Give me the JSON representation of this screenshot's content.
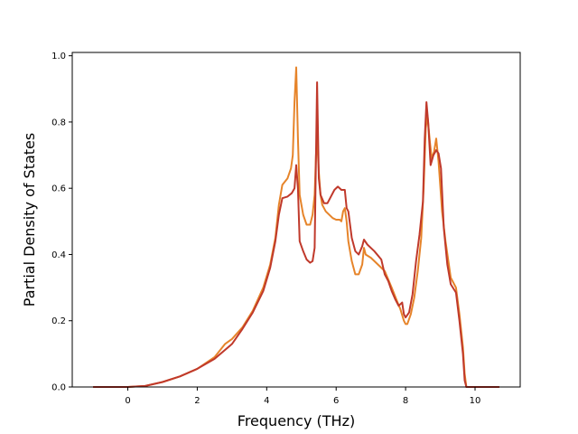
{
  "chart_data": {
    "type": "line",
    "title": "",
    "xlabel": "Frequency (THz)",
    "ylabel": "Partial Density of States",
    "xlim": [
      -1.6,
      11.3
    ],
    "ylim": [
      0.0,
      1.01
    ],
    "xticks": [
      0,
      2,
      4,
      6,
      8,
      10
    ],
    "yticks": [
      0.0,
      0.2,
      0.4,
      0.6,
      0.8,
      1.0
    ],
    "xtick_labels": [
      "0",
      "2",
      "4",
      "6",
      "8",
      "10"
    ],
    "ytick_labels": [
      "0.0",
      "0.2",
      "0.4",
      "0.6",
      "0.8",
      "1.0"
    ],
    "grid": false,
    "legend": "none",
    "series": [
      {
        "color": "#e6842a",
        "points": [
          [
            -1.0,
            0.0
          ],
          [
            0.0,
            0.0
          ],
          [
            0.5,
            0.003
          ],
          [
            1.0,
            0.015
          ],
          [
            1.5,
            0.032
          ],
          [
            2.0,
            0.055
          ],
          [
            2.5,
            0.09
          ],
          [
            2.8,
            0.13
          ],
          [
            3.0,
            0.145
          ],
          [
            3.3,
            0.18
          ],
          [
            3.6,
            0.23
          ],
          [
            3.9,
            0.3
          ],
          [
            4.1,
            0.37
          ],
          [
            4.25,
            0.45
          ],
          [
            4.35,
            0.55
          ],
          [
            4.45,
            0.61
          ],
          [
            4.6,
            0.63
          ],
          [
            4.7,
            0.66
          ],
          [
            4.75,
            0.7
          ],
          [
            4.8,
            0.86
          ],
          [
            4.85,
            0.965
          ],
          [
            4.9,
            0.75
          ],
          [
            4.95,
            0.58
          ],
          [
            5.05,
            0.52
          ],
          [
            5.15,
            0.49
          ],
          [
            5.25,
            0.49
          ],
          [
            5.32,
            0.52
          ],
          [
            5.38,
            0.58
          ],
          [
            5.42,
            0.7
          ],
          [
            5.45,
            0.75
          ],
          [
            5.5,
            0.65
          ],
          [
            5.55,
            0.58
          ],
          [
            5.6,
            0.55
          ],
          [
            5.7,
            0.53
          ],
          [
            5.9,
            0.51
          ],
          [
            6.0,
            0.505
          ],
          [
            6.1,
            0.505
          ],
          [
            6.15,
            0.5
          ],
          [
            6.2,
            0.53
          ],
          [
            6.25,
            0.54
          ],
          [
            6.3,
            0.5
          ],
          [
            6.35,
            0.44
          ],
          [
            6.45,
            0.38
          ],
          [
            6.55,
            0.34
          ],
          [
            6.65,
            0.34
          ],
          [
            6.75,
            0.37
          ],
          [
            6.8,
            0.42
          ],
          [
            6.85,
            0.4
          ],
          [
            7.0,
            0.39
          ],
          [
            7.2,
            0.37
          ],
          [
            7.4,
            0.35
          ],
          [
            7.6,
            0.3
          ],
          [
            7.75,
            0.26
          ],
          [
            7.85,
            0.235
          ],
          [
            7.95,
            0.2
          ],
          [
            8.0,
            0.19
          ],
          [
            8.05,
            0.19
          ],
          [
            8.15,
            0.22
          ],
          [
            8.25,
            0.27
          ],
          [
            8.35,
            0.35
          ],
          [
            8.45,
            0.45
          ],
          [
            8.52,
            0.6
          ],
          [
            8.58,
            0.78
          ],
          [
            8.63,
            0.82
          ],
          [
            8.7,
            0.74
          ],
          [
            8.75,
            0.69
          ],
          [
            8.82,
            0.71
          ],
          [
            8.88,
            0.75
          ],
          [
            8.95,
            0.68
          ],
          [
            9.05,
            0.53
          ],
          [
            9.15,
            0.44
          ],
          [
            9.3,
            0.33
          ],
          [
            9.45,
            0.3
          ],
          [
            9.55,
            0.22
          ],
          [
            9.65,
            0.12
          ],
          [
            9.7,
            0.04
          ],
          [
            9.75,
            0.0
          ],
          [
            10.7,
            0.0
          ]
        ]
      },
      {
        "color": "#c0392b",
        "points": [
          [
            -1.0,
            0.0
          ],
          [
            0.0,
            0.0
          ],
          [
            0.5,
            0.003
          ],
          [
            1.0,
            0.015
          ],
          [
            1.5,
            0.032
          ],
          [
            2.0,
            0.055
          ],
          [
            2.5,
            0.085
          ],
          [
            3.0,
            0.13
          ],
          [
            3.3,
            0.175
          ],
          [
            3.6,
            0.225
          ],
          [
            3.9,
            0.29
          ],
          [
            4.1,
            0.36
          ],
          [
            4.25,
            0.44
          ],
          [
            4.35,
            0.52
          ],
          [
            4.45,
            0.57
          ],
          [
            4.6,
            0.575
          ],
          [
            4.72,
            0.585
          ],
          [
            4.8,
            0.6
          ],
          [
            4.85,
            0.67
          ],
          [
            4.9,
            0.6
          ],
          [
            4.95,
            0.44
          ],
          [
            5.05,
            0.41
          ],
          [
            5.15,
            0.385
          ],
          [
            5.25,
            0.375
          ],
          [
            5.32,
            0.38
          ],
          [
            5.38,
            0.42
          ],
          [
            5.42,
            0.7
          ],
          [
            5.45,
            0.92
          ],
          [
            5.5,
            0.63
          ],
          [
            5.55,
            0.58
          ],
          [
            5.65,
            0.555
          ],
          [
            5.75,
            0.555
          ],
          [
            5.85,
            0.575
          ],
          [
            5.95,
            0.595
          ],
          [
            6.05,
            0.605
          ],
          [
            6.15,
            0.595
          ],
          [
            6.25,
            0.595
          ],
          [
            6.3,
            0.54
          ],
          [
            6.35,
            0.53
          ],
          [
            6.45,
            0.45
          ],
          [
            6.55,
            0.41
          ],
          [
            6.65,
            0.4
          ],
          [
            6.75,
            0.425
          ],
          [
            6.8,
            0.445
          ],
          [
            6.9,
            0.43
          ],
          [
            7.1,
            0.41
          ],
          [
            7.3,
            0.385
          ],
          [
            7.4,
            0.34
          ],
          [
            7.5,
            0.32
          ],
          [
            7.6,
            0.29
          ],
          [
            7.7,
            0.265
          ],
          [
            7.8,
            0.245
          ],
          [
            7.9,
            0.255
          ],
          [
            7.95,
            0.22
          ],
          [
            8.0,
            0.21
          ],
          [
            8.1,
            0.225
          ],
          [
            8.2,
            0.28
          ],
          [
            8.3,
            0.38
          ],
          [
            8.4,
            0.46
          ],
          [
            8.5,
            0.56
          ],
          [
            8.55,
            0.75
          ],
          [
            8.6,
            0.86
          ],
          [
            8.65,
            0.8
          ],
          [
            8.72,
            0.67
          ],
          [
            8.8,
            0.7
          ],
          [
            8.88,
            0.715
          ],
          [
            8.95,
            0.705
          ],
          [
            9.02,
            0.66
          ],
          [
            9.1,
            0.48
          ],
          [
            9.2,
            0.37
          ],
          [
            9.3,
            0.31
          ],
          [
            9.45,
            0.285
          ],
          [
            9.55,
            0.2
          ],
          [
            9.65,
            0.1
          ],
          [
            9.7,
            0.02
          ],
          [
            9.75,
            0.0
          ],
          [
            10.7,
            0.0
          ]
        ]
      }
    ]
  }
}
